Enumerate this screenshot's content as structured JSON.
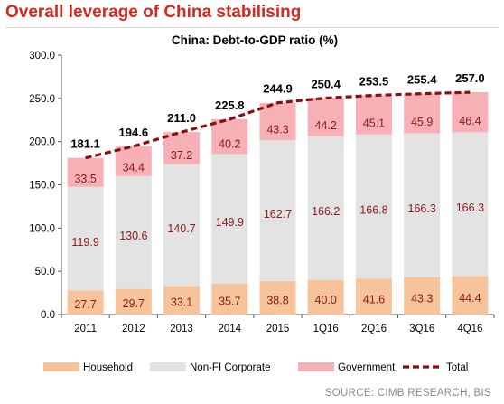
{
  "headline": "Overall leverage of China stabilising",
  "source": "SOURCE: CIMB RESEARCH, BIS",
  "chart_data": {
    "type": "bar",
    "stacked": true,
    "title": "China: Debt-to-GDP ratio (%)",
    "xlabel": "",
    "ylabel": "",
    "ylim": [
      0,
      300
    ],
    "yticks": [
      "0.0",
      "50.0",
      "100.0",
      "150.0",
      "200.0",
      "250.0",
      "300.0"
    ],
    "grid": false,
    "legend": "bottom",
    "categories": [
      "2011",
      "2012",
      "2013",
      "2014",
      "2015",
      "1Q16",
      "2Q16",
      "3Q16",
      "4Q16"
    ],
    "series": [
      {
        "name": "Household",
        "color": "#f7c39b",
        "values": [
          27.7,
          29.7,
          33.1,
          35.7,
          38.8,
          40.0,
          41.6,
          43.3,
          44.4
        ]
      },
      {
        "name": "Non-FI Corporate",
        "color": "#e3e3e3",
        "values": [
          119.9,
          130.6,
          140.7,
          149.9,
          162.7,
          166.2,
          166.8,
          166.3,
          166.3
        ]
      },
      {
        "name": "Government",
        "color": "#f7b0b6",
        "values": [
          33.5,
          34.4,
          37.2,
          40.2,
          43.3,
          44.2,
          45.1,
          45.9,
          46.4
        ]
      }
    ],
    "total": {
      "name": "Total",
      "color": "#8b0e0e",
      "values": [
        181.1,
        194.6,
        211.0,
        225.8,
        244.9,
        250.4,
        253.5,
        255.4,
        257.0
      ],
      "labels": [
        "181.1",
        "194.6",
        "211.0",
        "225.8",
        "244.9",
        "250.4",
        "253.5",
        "255.4",
        "257.0"
      ]
    },
    "segment_labels": [
      [
        "27.7",
        "29.7",
        "33.1",
        "35.7",
        "38.8",
        "40.0",
        "41.6",
        "43.3",
        "44.4"
      ],
      [
        "119.9",
        "130.6",
        "140.7",
        "149.9",
        "162.7",
        "166.2",
        "166.8",
        "166.3",
        "166.3"
      ],
      [
        "33.5",
        "34.4",
        "37.2",
        "40.2",
        "43.3",
        "44.2",
        "45.1",
        "45.9",
        "46.4"
      ]
    ],
    "label_color": "#8b1a1a"
  }
}
